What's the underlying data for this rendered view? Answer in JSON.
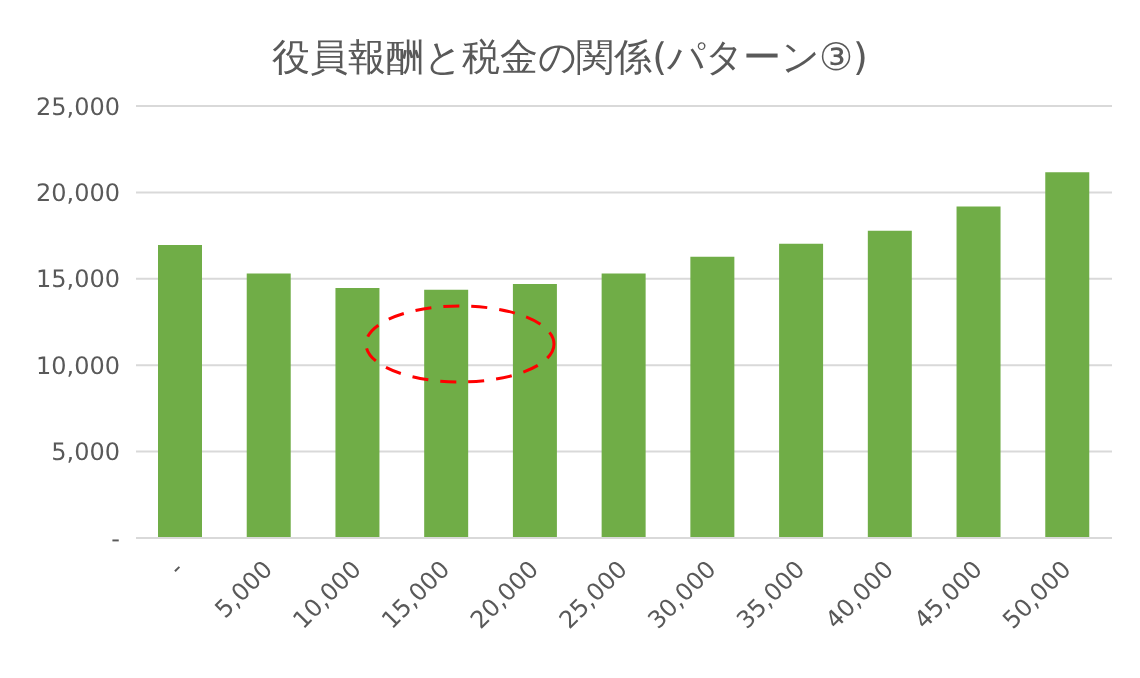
{
  "chart_data": {
    "type": "bar",
    "title": "役員報酬と税金の関係(パターン③)",
    "categories": [
      "-",
      "5,000",
      "10,000",
      "15,000",
      "20,000",
      "25,000",
      "30,000",
      "35,000",
      "40,000",
      "45,000",
      "50,000"
    ],
    "values": [
      16950,
      15300,
      14470,
      14360,
      14700,
      15300,
      16280,
      17030,
      17780,
      19180,
      21160
    ],
    "color": "#70ad47",
    "ylim": [
      0,
      25000
    ],
    "yticks": [
      {
        "value": 0,
        "label": "-"
      },
      {
        "value": 5000,
        "label": "5,000"
      },
      {
        "value": 10000,
        "label": "10,000"
      },
      {
        "value": 15000,
        "label": "15,000"
      },
      {
        "value": 20000,
        "label": "20,000"
      },
      {
        "value": 25000,
        "label": "25,000"
      }
    ],
    "grid": "y"
  }
}
